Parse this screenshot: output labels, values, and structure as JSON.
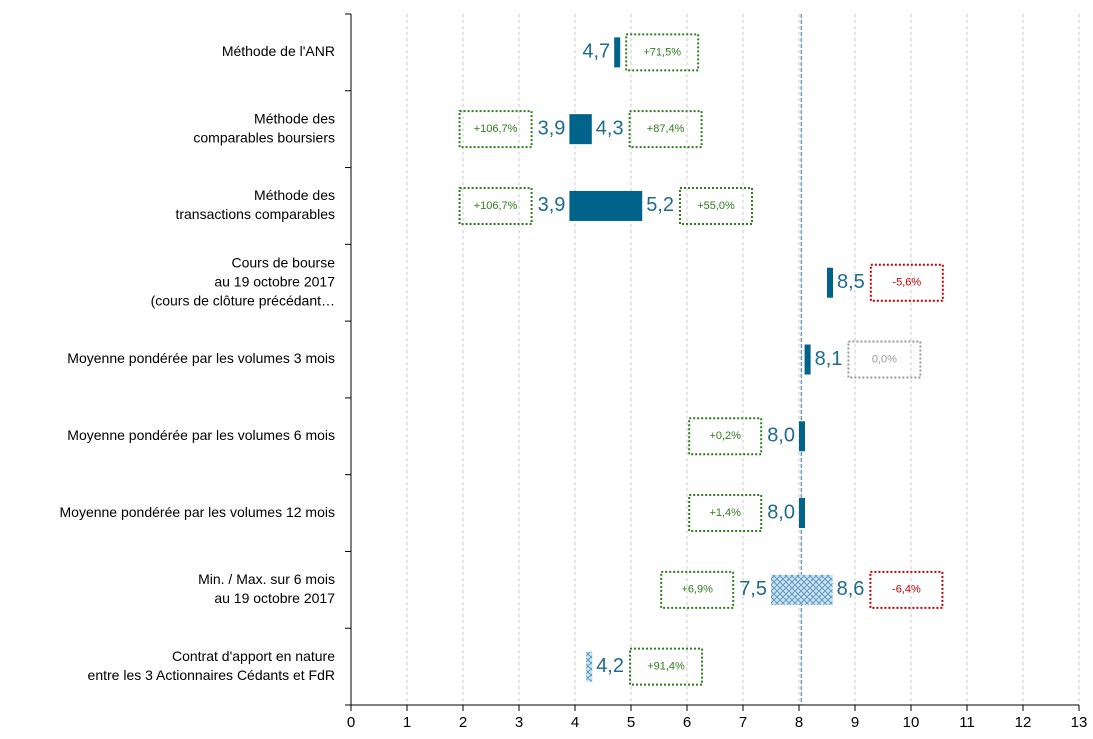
{
  "chart_data": {
    "type": "range_bar",
    "xlim": [
      0,
      13
    ],
    "xticks": [
      0,
      1,
      2,
      3,
      4,
      5,
      6,
      7,
      8,
      9,
      10,
      11,
      12,
      13
    ],
    "grid": true,
    "reference_line": 8.04,
    "bar_color": "#006389",
    "hatch_color": "#5e9cc2",
    "rows": [
      {
        "category": [
          "Méthode de l'ANR"
        ],
        "values": [
          4.7
        ],
        "value_labels": [
          "4,7"
        ],
        "label_side": "left",
        "style": "solid",
        "premium_right": {
          "value": 71.5,
          "label": "+71,5%",
          "color": "#2e7d1e"
        }
      },
      {
        "category": [
          "Méthode des",
          "comparables boursiers"
        ],
        "values": [
          3.9,
          4.3
        ],
        "value_labels": [
          "3,9",
          "4,3"
        ],
        "style": "solid",
        "premium_left": {
          "value": 106.7,
          "label": "+106,7%",
          "color": "#2e7d1e"
        },
        "premium_right": {
          "value": 87.4,
          "label": "+87,4%",
          "color": "#2e7d1e"
        }
      },
      {
        "category": [
          "Méthode des",
          "transactions comparables"
        ],
        "values": [
          3.9,
          5.2
        ],
        "value_labels": [
          "3,9",
          "5,2"
        ],
        "style": "solid",
        "premium_left": {
          "value": 106.7,
          "label": "+106,7%",
          "color": "#2e7d1e"
        },
        "premium_right": {
          "value": 55.0,
          "label": "+55,0%",
          "color": "#2e7d1e"
        }
      },
      {
        "category": [
          "Cours de bourse",
          "au 19 octobre 2017",
          "(cours de clôture précédant…"
        ],
        "values": [
          8.5
        ],
        "value_labels": [
          "8,5"
        ],
        "label_side": "right",
        "style": "solid",
        "premium_right": {
          "value": -5.6,
          "label": "-5,6%",
          "color": "#c00000"
        }
      },
      {
        "category": [
          "Moyenne pondérée par les volumes 3 mois"
        ],
        "values": [
          8.1
        ],
        "value_labels": [
          "8,1"
        ],
        "label_side": "right",
        "style": "solid",
        "premium_right": {
          "value": 0.0,
          "label": "0,0%",
          "color": "#9a9a9a"
        }
      },
      {
        "category": [
          "Moyenne pondérée par les volumes 6 mois"
        ],
        "values": [
          8.0
        ],
        "value_labels": [
          "8,0"
        ],
        "label_side": "left",
        "style": "solid",
        "premium_left": {
          "value": 0.2,
          "label": "+0,2%",
          "color": "#2e7d1e"
        }
      },
      {
        "category": [
          "Moyenne pondérée par les volumes 12 mois"
        ],
        "values": [
          8.0
        ],
        "value_labels": [
          "8,0"
        ],
        "label_side": "left",
        "style": "solid",
        "premium_left": {
          "value": 1.4,
          "label": "+1,4%",
          "color": "#2e7d1e"
        }
      },
      {
        "category": [
          "Min. / Max. sur 6 mois",
          "au 19 octobre 2017"
        ],
        "values": [
          7.5,
          8.6
        ],
        "value_labels": [
          "7,5",
          "8,6"
        ],
        "style": "hatched",
        "premium_left": {
          "value": 6.9,
          "label": "+6,9%",
          "color": "#2e7d1e"
        },
        "premium_right": {
          "value": -6.4,
          "label": "-6,4%",
          "color": "#c00000"
        }
      },
      {
        "category": [
          "Contrat d'apport en nature",
          "entre les 3 Actionnaires Cédants et FdR"
        ],
        "values": [
          4.2
        ],
        "value_labels": [
          "4,2"
        ],
        "label_side": "right",
        "style": "hatched",
        "premium_right": {
          "value": 91.4,
          "label": "+91,4%",
          "color": "#2e7d1e"
        }
      }
    ]
  }
}
